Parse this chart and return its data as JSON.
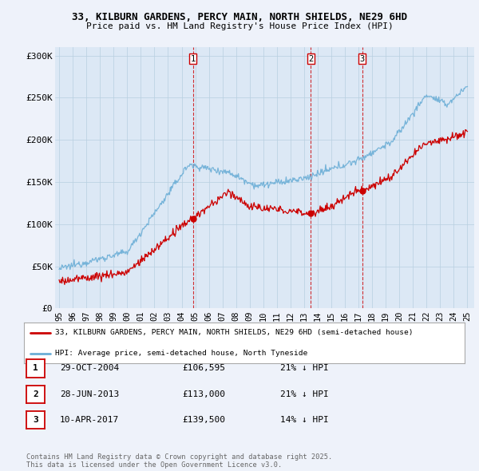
{
  "title": "33, KILBURN GARDENS, PERCY MAIN, NORTH SHIELDS, NE29 6HD",
  "subtitle": "Price paid vs. HM Land Registry's House Price Index (HPI)",
  "hpi_color": "#6baed6",
  "price_color": "#cc0000",
  "vline_color": "#cc0000",
  "ylim": [
    0,
    310000
  ],
  "yticks": [
    0,
    50000,
    100000,
    150000,
    200000,
    250000,
    300000
  ],
  "ytick_labels": [
    "£0",
    "£50K",
    "£100K",
    "£150K",
    "£200K",
    "£250K",
    "£300K"
  ],
  "xtick_years": [
    "95",
    "96",
    "97",
    "98",
    "99",
    "00",
    "01",
    "02",
    "03",
    "04",
    "05",
    "06",
    "07",
    "08",
    "09",
    "10",
    "11",
    "12",
    "13",
    "14",
    "15",
    "16",
    "17",
    "18",
    "19",
    "20",
    "21",
    "22",
    "23",
    "24",
    "25"
  ],
  "xtick_vals": [
    1995,
    1996,
    1997,
    1998,
    1999,
    2000,
    2001,
    2002,
    2003,
    2004,
    2005,
    2006,
    2007,
    2008,
    2009,
    2010,
    2011,
    2012,
    2013,
    2014,
    2015,
    2016,
    2017,
    2018,
    2019,
    2020,
    2021,
    2022,
    2023,
    2024,
    2025
  ],
  "sales": [
    {
      "label": "1",
      "date": 2004.83,
      "price": 106595
    },
    {
      "label": "2",
      "date": 2013.49,
      "price": 113000
    },
    {
      "label": "3",
      "date": 2017.27,
      "price": 139500
    }
  ],
  "legend_entries": [
    "33, KILBURN GARDENS, PERCY MAIN, NORTH SHIELDS, NE29 6HD (semi-detached house)",
    "HPI: Average price, semi-detached house, North Tyneside"
  ],
  "table_rows": [
    {
      "num": "1",
      "date": "29-OCT-2004",
      "price": "£106,595",
      "hpi": "21% ↓ HPI"
    },
    {
      "num": "2",
      "date": "28-JUN-2013",
      "price": "£113,000",
      "hpi": "21% ↓ HPI"
    },
    {
      "num": "3",
      "date": "10-APR-2017",
      "price": "£139,500",
      "hpi": "14% ↓ HPI"
    }
  ],
  "footer": "Contains HM Land Registry data © Crown copyright and database right 2025.\nThis data is licensed under the Open Government Licence v3.0.",
  "bg_color": "#eef2fa",
  "plot_bg": "#dce8f5"
}
